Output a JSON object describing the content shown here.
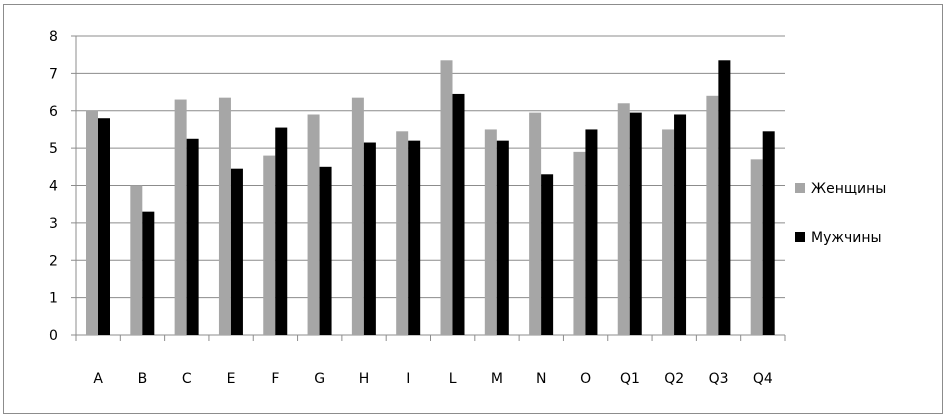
{
  "chart_data": {
    "type": "bar",
    "title": "",
    "xlabel": "",
    "ylabel": "",
    "ylim": [
      0,
      8
    ],
    "yticks": [
      0,
      1,
      2,
      3,
      4,
      5,
      6,
      7,
      8
    ],
    "grid": true,
    "legend_position": "right",
    "categories": [
      "A",
      "B",
      "C",
      "E",
      "F",
      "G",
      "H",
      "I",
      "L",
      "M",
      "N",
      "O",
      "Q1",
      "Q2",
      "Q3",
      "Q4"
    ],
    "series": [
      {
        "name": "Женщины",
        "color": "#a6a6a6",
        "values": [
          6.0,
          4.0,
          6.3,
          6.35,
          4.8,
          5.9,
          6.35,
          5.45,
          7.35,
          5.5,
          5.95,
          4.9,
          6.2,
          5.5,
          6.4,
          4.7
        ]
      },
      {
        "name": "Мужчины",
        "color": "#000000",
        "values": [
          5.8,
          3.3,
          5.25,
          4.45,
          5.55,
          4.5,
          5.15,
          5.2,
          6.45,
          5.2,
          4.3,
          5.5,
          5.95,
          5.9,
          7.35,
          5.45
        ]
      }
    ]
  }
}
